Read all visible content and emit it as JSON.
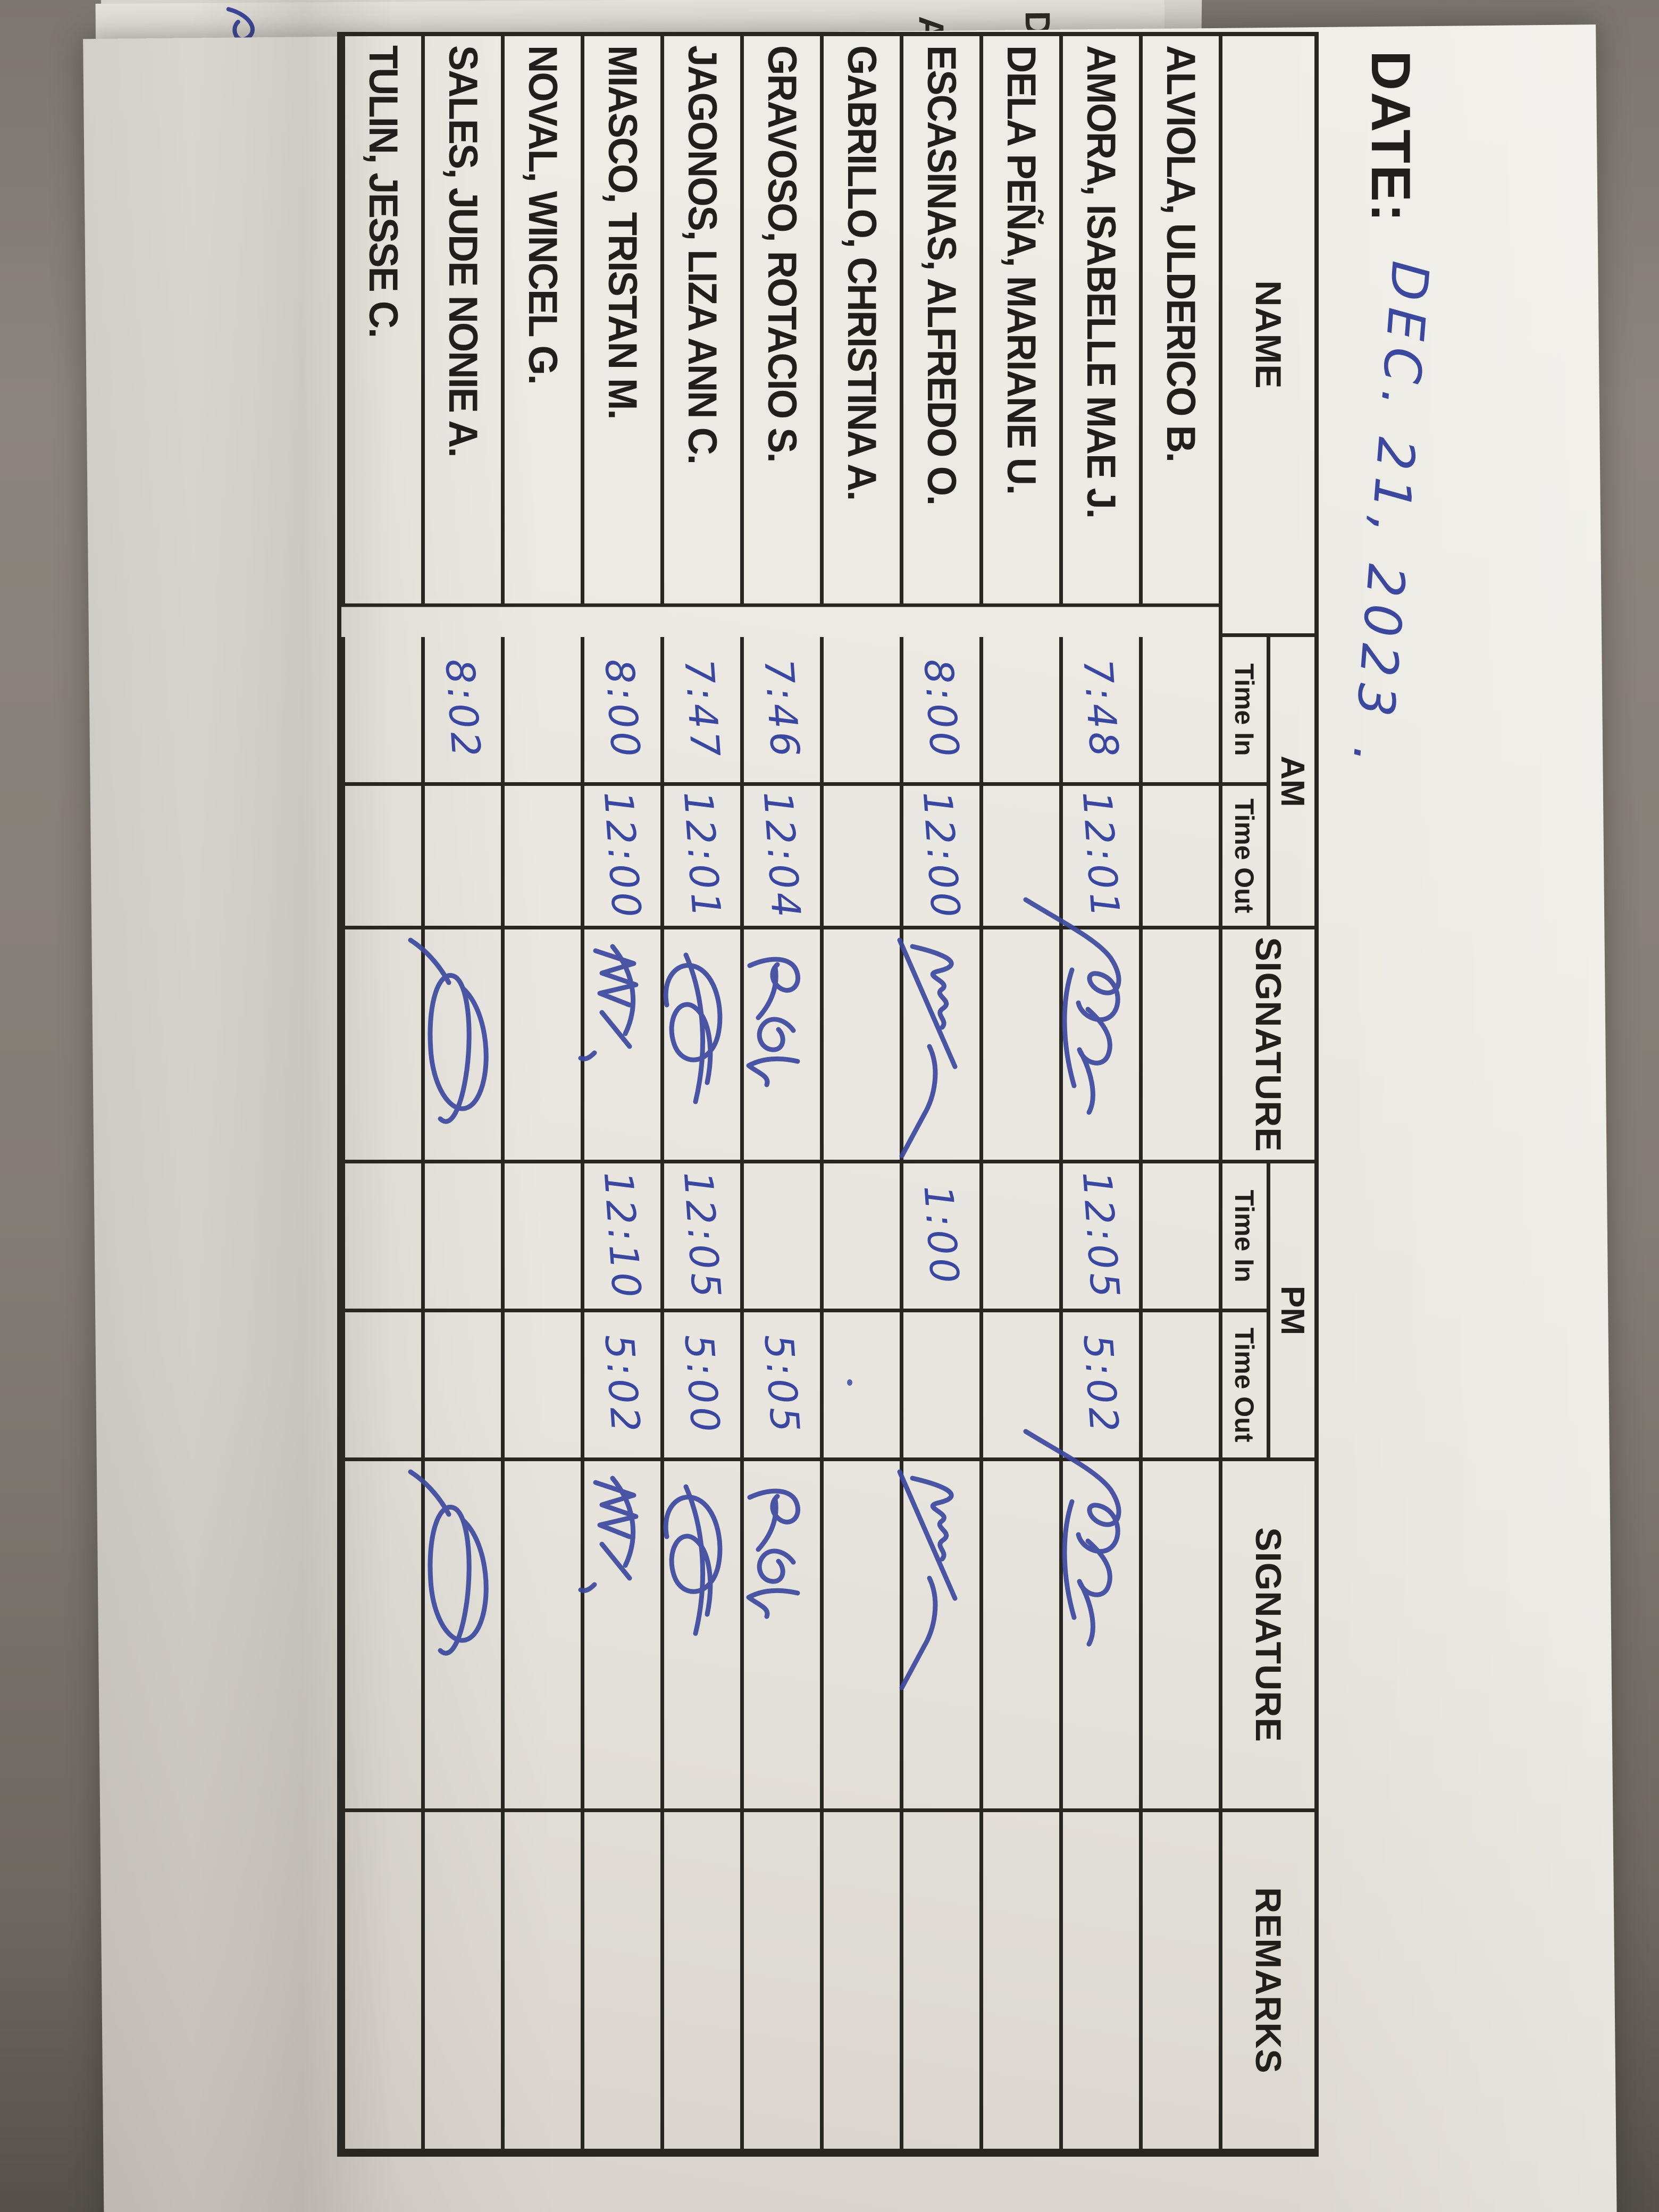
{
  "date": {
    "label": "DATE:",
    "value": "DEC. 21, 2023 ."
  },
  "table": {
    "headers": {
      "name": "NAME",
      "am": "AM",
      "pm": "PM",
      "time_in": "Time In",
      "time_out": "Time Out",
      "signature": "SIGNATURE",
      "remarks": "REMARKS"
    },
    "rows": [
      {
        "name": "ALVIOLA, ULDERICO B.",
        "am_in": "",
        "am_out": "",
        "am_sig": "",
        "pm_in": "",
        "pm_out": "",
        "pm_sig": "",
        "remarks": ""
      },
      {
        "name": "AMORA, ISABELLE MAE J.",
        "am_in": "7:48",
        "am_out": "12:01",
        "am_sig": "loops",
        "pm_in": "12:05",
        "pm_out": "5:02",
        "pm_sig": "loops",
        "remarks": ""
      },
      {
        "name": "DELA PEÑA, MARIANE U.",
        "am_in": "",
        "am_out": "",
        "am_sig": "",
        "pm_in": "",
        "pm_out": "",
        "pm_sig": "",
        "remarks": ""
      },
      {
        "name": "ESCASINAS, ALFREDO O.",
        "am_in": "8:00",
        "am_out": "12:00",
        "am_sig": "scrawl",
        "pm_in": "1:00",
        "pm_out": "",
        "pm_sig": "scrawl",
        "remarks": ""
      },
      {
        "name": "GABRILLO, CHRISTINA A.",
        "am_in": "",
        "am_out": "",
        "am_sig": "",
        "pm_in": "",
        "pm_out": "",
        "pm_sig": "",
        "remarks": "",
        "pm_out_mark": "ink-dot"
      },
      {
        "name": "GRAVOSO, ROTACIO S.",
        "am_in": "7:46",
        "am_out": "12:04",
        "am_sig": "rs",
        "pm_in": "",
        "pm_out": "5:05",
        "pm_sig": "rs",
        "remarks": ""
      },
      {
        "name": "JAGONOS, LIZA ANN C.",
        "am_in": "7:47",
        "am_out": "12:01",
        "am_sig": "jloop",
        "pm_in": "12:05",
        "pm_out": "5:00",
        "pm_sig": "jloop",
        "remarks": ""
      },
      {
        "name": "MIASCO, TRISTAN M.",
        "am_in": "8:00",
        "am_out": "12:00",
        "am_sig": "mscrawl",
        "pm_in": "12:10",
        "pm_out": "5:02",
        "pm_sig": "mscrawl",
        "remarks": ""
      },
      {
        "name": "NOVAL, WINCEL G.",
        "am_in": "",
        "am_out": "",
        "am_sig": "",
        "pm_in": "",
        "pm_out": "",
        "pm_sig": "",
        "remarks": ""
      },
      {
        "name": "SALES, JUDE NONIE A.",
        "am_in": "8:02",
        "am_out": "",
        "am_sig": "bigloop",
        "pm_in": "",
        "pm_out": "",
        "pm_sig": "bigloop",
        "remarks": ""
      },
      {
        "name": "TULIN, JESSE C.",
        "am_in": "",
        "am_out": "",
        "am_sig": "",
        "pm_in": "",
        "pm_out": "",
        "pm_sig": "",
        "remarks": ""
      }
    ]
  },
  "background": {
    "fragment_letters": [
      "D",
      "A"
    ],
    "ink_color": "#3c489e",
    "line_color": "#282620",
    "paper_color": "#eae8e1"
  }
}
